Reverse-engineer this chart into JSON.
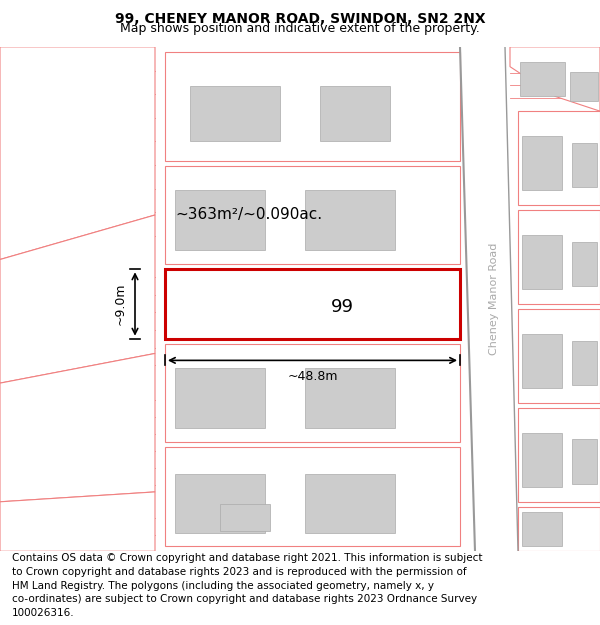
{
  "title": "99, CHENEY MANOR ROAD, SWINDON, SN2 2NX",
  "subtitle": "Map shows position and indicative extent of the property.",
  "footer_text": "Contains OS data © Crown copyright and database right 2021. This information is subject\nto Crown copyright and database rights 2023 and is reproduced with the permission of\nHM Land Registry. The polygons (including the associated geometry, namely x, y\nco-ordinates) are subject to Crown copyright and database rights 2023 Ordnance Survey\n100026316.",
  "area_text": "~363m²/~0.090ac.",
  "property_label": "99",
  "dim_width": "~48.8m",
  "dim_height": "~9.0m",
  "road_label": "Cheney Manor Road",
  "lc": "#f08080",
  "bc": "#cccccc",
  "rc": "#cc0000",
  "title_fontsize": 10,
  "subtitle_fontsize": 9,
  "footer_fontsize": 7.5,
  "area_fontsize": 11,
  "label_fontsize": 13
}
